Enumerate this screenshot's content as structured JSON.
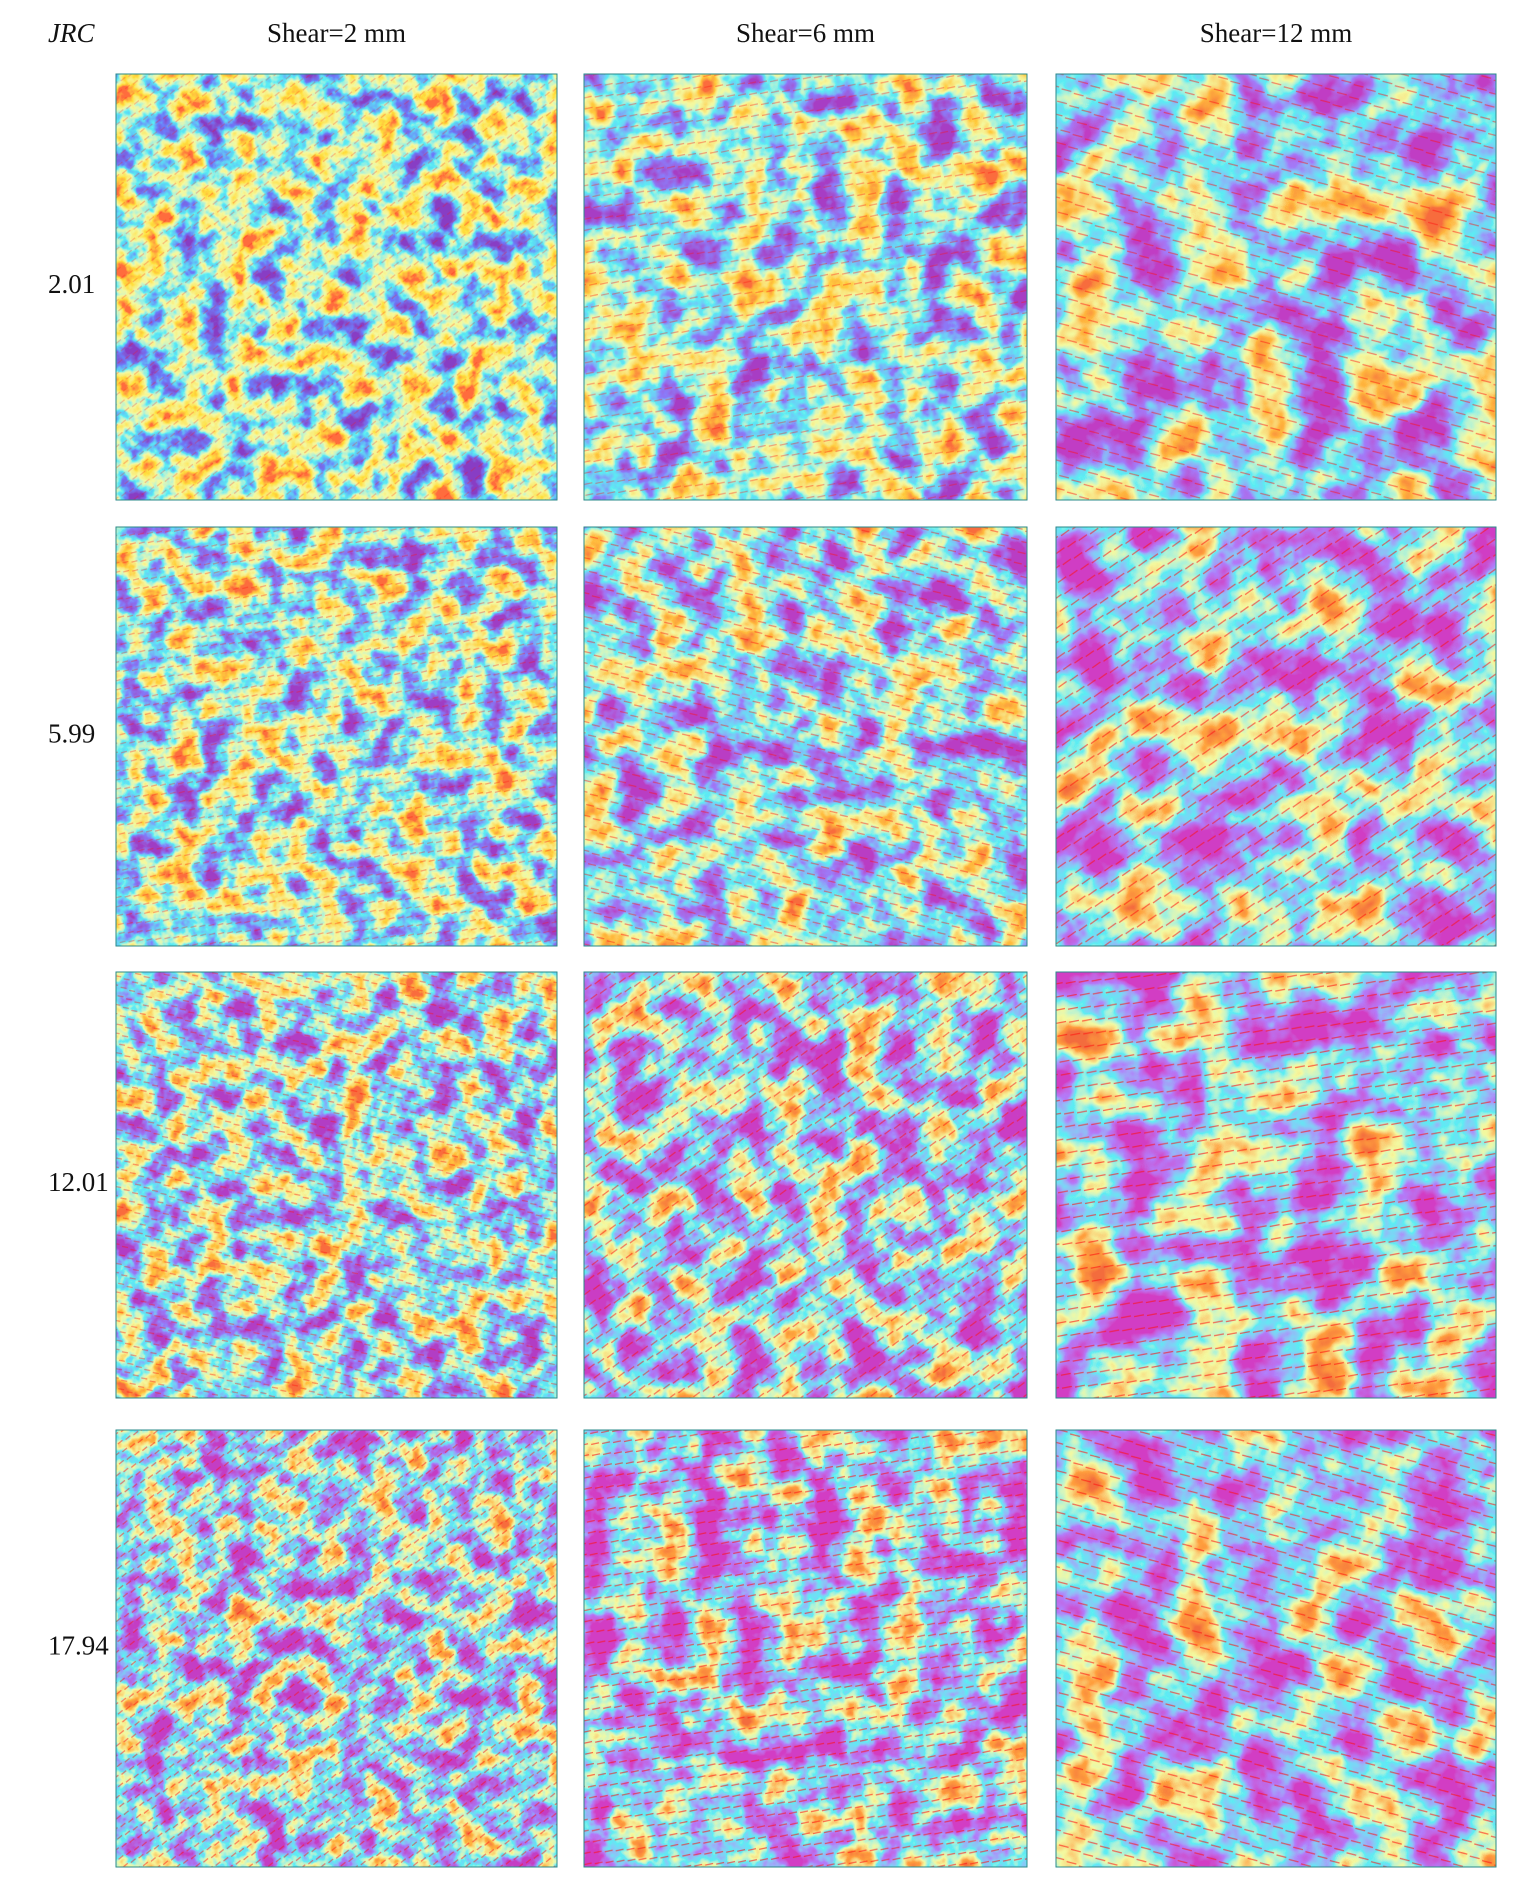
{
  "figure": {
    "corner_label": "JRC",
    "columns": [
      "Shear=2 mm",
      "Shear=6 mm",
      "Shear=12 mm"
    ],
    "rows": [
      "2.01",
      "5.99",
      "12.01",
      "17.94"
    ]
  }
}
